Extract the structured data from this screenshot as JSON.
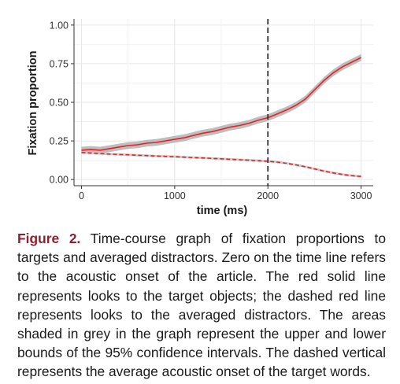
{
  "chart_data": {
    "type": "line",
    "title": "",
    "xlabel": "time (ms)",
    "ylabel": "Fixation proportion",
    "xlim": [
      -80,
      3130
    ],
    "ylim": [
      -0.04,
      1.04
    ],
    "xticks": [
      0,
      1000,
      2000,
      3000
    ],
    "xtick_labels": [
      "0",
      "1000",
      "2000",
      "3000"
    ],
    "yticks": [
      0,
      0.25,
      0.5,
      0.75,
      1
    ],
    "ytick_labels": [
      "0.00",
      "0.25",
      "0.50",
      "0.75",
      "1.00"
    ],
    "grid": true,
    "vline": 2000,
    "series": [
      {
        "style": "solid",
        "color": "#e0242b",
        "band_color": "#b3b3b3",
        "x": [
          0,
          100,
          200,
          300,
          400,
          500,
          600,
          700,
          800,
          900,
          1000,
          1100,
          1200,
          1300,
          1400,
          1500,
          1600,
          1700,
          1800,
          1900,
          2000,
          2100,
          2200,
          2300,
          2400,
          2500,
          2600,
          2700,
          2800,
          2900,
          3000
        ],
        "values": [
          0.19,
          0.195,
          0.19,
          0.2,
          0.21,
          0.22,
          0.225,
          0.235,
          0.24,
          0.25,
          0.26,
          0.27,
          0.285,
          0.3,
          0.31,
          0.325,
          0.34,
          0.35,
          0.365,
          0.385,
          0.4,
          0.425,
          0.45,
          0.48,
          0.52,
          0.58,
          0.64,
          0.69,
          0.73,
          0.76,
          0.79
        ],
        "band": 0.022
      },
      {
        "style": "dashed",
        "color": "#e0242b",
        "band_color": "#c8c8c8",
        "x": [
          0,
          100,
          200,
          300,
          400,
          500,
          600,
          700,
          800,
          900,
          1000,
          1100,
          1200,
          1300,
          1400,
          1500,
          1600,
          1700,
          1800,
          1900,
          2000,
          2100,
          2200,
          2300,
          2400,
          2500,
          2600,
          2700,
          2800,
          2900,
          3000
        ],
        "values": [
          0.175,
          0.172,
          0.168,
          0.165,
          0.162,
          0.16,
          0.157,
          0.155,
          0.152,
          0.15,
          0.148,
          0.145,
          0.142,
          0.14,
          0.137,
          0.134,
          0.131,
          0.128,
          0.125,
          0.122,
          0.118,
          0.113,
          0.105,
          0.095,
          0.083,
          0.069,
          0.055,
          0.043,
          0.033,
          0.025,
          0.02
        ],
        "band": 0.008
      }
    ]
  },
  "caption": {
    "label": "Figure 2.",
    "text": " Time-course graph of fixation proportions to targets and averaged distractors. Zero on the time line refers to the acoustic onset of the article. The red solid line represents looks to the target objects; the dashed red line represents looks to the averaged distractors. The areas shaded in grey in the graph represent the upper and lower bounds of the 95% confi­dence intervals. The dashed vertical represents the average acoustic onset of the target words."
  }
}
